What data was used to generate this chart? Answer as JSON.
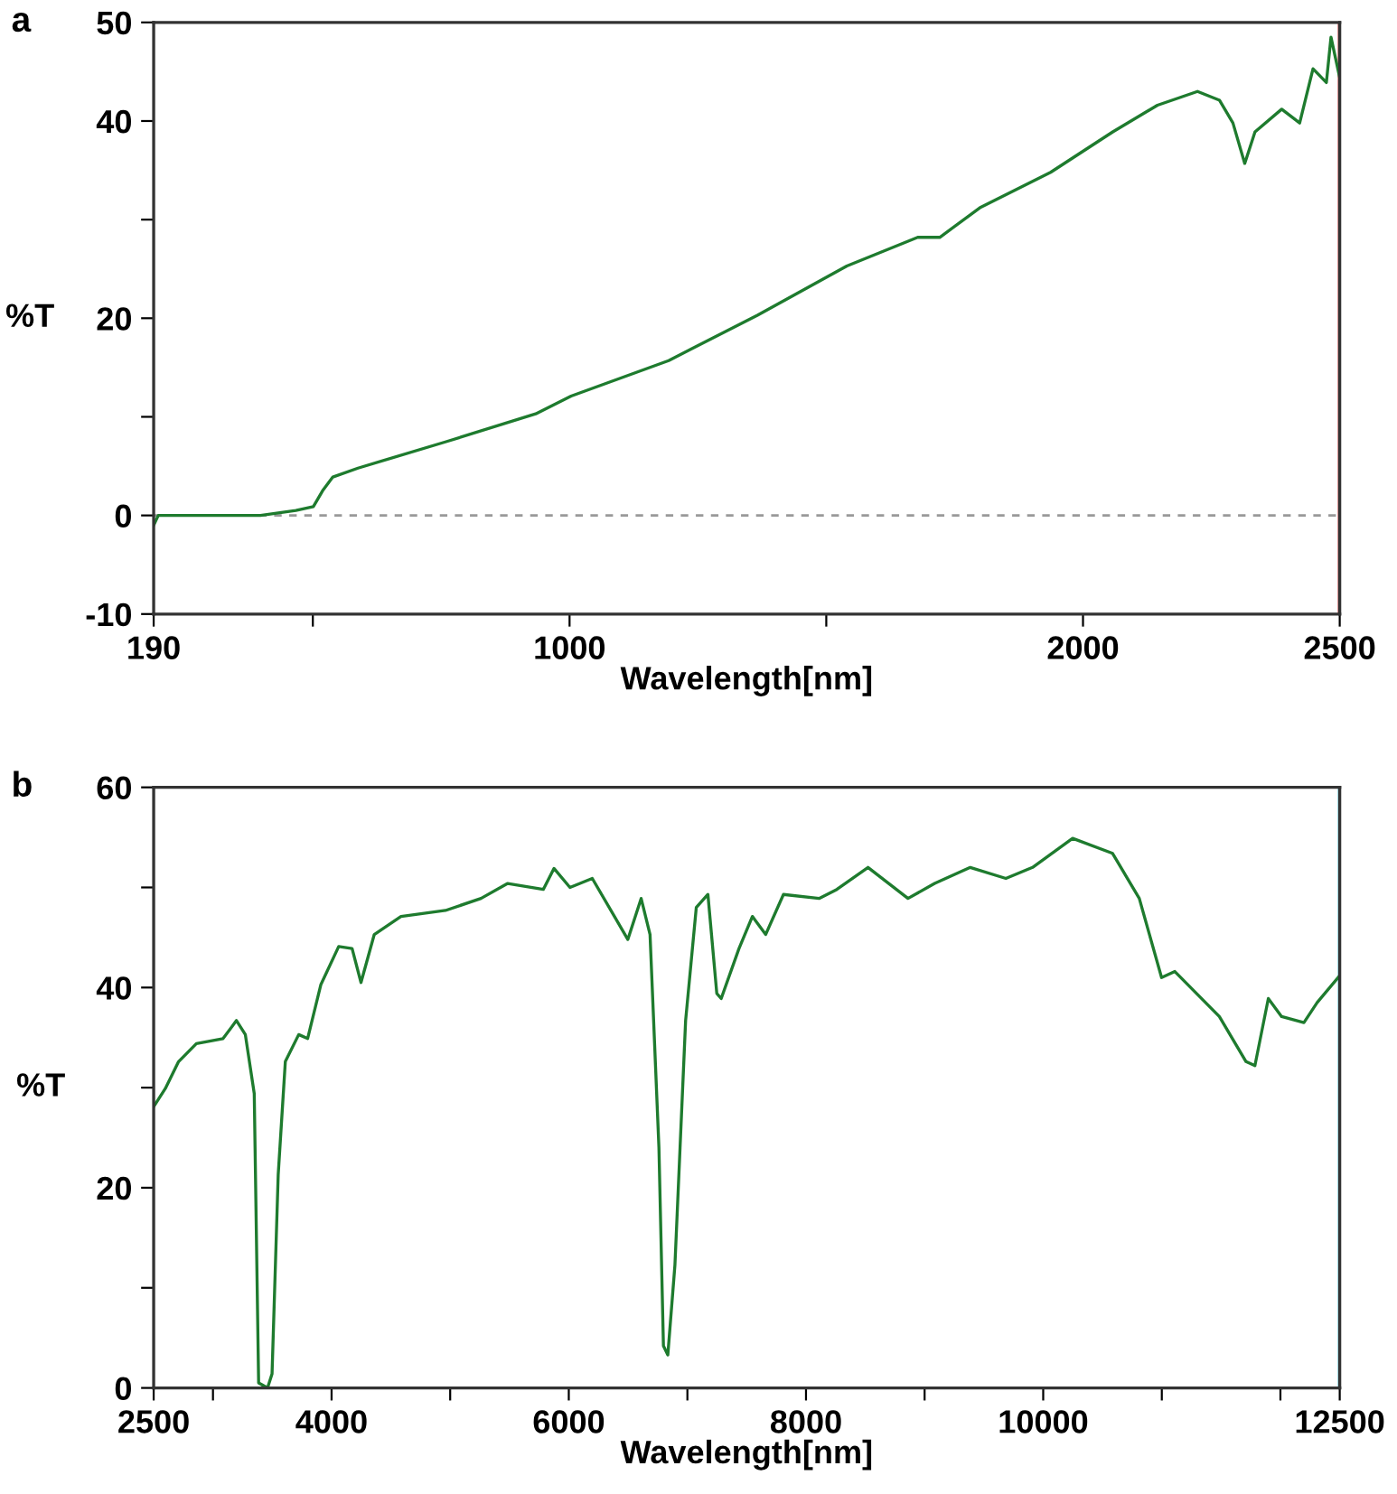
{
  "chart_data": [
    {
      "type": "line",
      "title": "a",
      "xlabel": "Wavelength[nm]",
      "ylabel": "%T",
      "xlim": [
        190,
        2500
      ],
      "xticks": [
        190,
        {
          "value": 500,
          "label": null
        },
        1000,
        {
          "value": 1500,
          "label": null
        },
        2000,
        2500
      ],
      "ylim": [
        -10,
        50
      ],
      "yticks": [
        -10,
        0,
        {
          "value": 10,
          "label": null
        },
        20,
        {
          "value": 30,
          "label": null
        },
        40,
        50
      ],
      "grid": false,
      "legend": false,
      "marker": "none",
      "line_style": "solid",
      "ref_lines": [
        {
          "axis": "y",
          "value": 0,
          "label": null,
          "color": "#999999",
          "line_style": "dashed"
        },
        {
          "axis": "x",
          "value": 2500,
          "label": null,
          "color": "#c0282a",
          "line_style": "solid"
        }
      ],
      "series": [
        {
          "color": "#1e7b2e",
          "x": [
            190,
            199,
            398,
            467,
            501,
            519,
            539,
            588,
            761,
            934,
            1003,
            1193,
            1366,
            1540,
            1678,
            1721,
            1799,
            1937,
            2058,
            2145,
            2223,
            2266,
            2292,
            2315,
            2335,
            2387,
            2422,
            2448,
            2474,
            2483,
            2500
          ],
          "values": [
            -1,
            0,
            0,
            0.5,
            0.9,
            2.5,
            3.9,
            4.8,
            7.5,
            10.3,
            12.1,
            15.7,
            20.3,
            25.3,
            28.2,
            28.2,
            31.2,
            34.8,
            38.9,
            41.6,
            43.0,
            42.1,
            39.8,
            35.7,
            38.9,
            41.2,
            39.8,
            45.3,
            43.9,
            48.5,
            44.4
          ]
        }
      ]
    },
    {
      "type": "line",
      "title": "b",
      "xlabel": "Wavelength[nm]",
      "ylabel": "%T",
      "xlim": [
        2500,
        12500
      ],
      "xticks": [
        2500,
        {
          "value": 3000,
          "label": null
        },
        4000,
        {
          "value": 5000,
          "label": null
        },
        6000,
        {
          "value": 7000,
          "label": null
        },
        8000,
        {
          "value": 9000,
          "label": null
        },
        10000,
        {
          "value": 11000,
          "label": null
        },
        {
          "value": 12000,
          "label": null
        },
        12500
      ],
      "ylim": [
        0,
        60
      ],
      "yticks": [
        0,
        {
          "value": 10,
          "label": null
        },
        20,
        {
          "value": 30,
          "label": null
        },
        40,
        {
          "value": 50,
          "label": null
        },
        60
      ],
      "grid": false,
      "legend": false,
      "marker": "none",
      "line_style": "solid",
      "ref_lines": [
        {
          "axis": "x",
          "value": 12500,
          "label": null,
          "color": "#4cc3d4",
          "line_style": "solid"
        }
      ],
      "series": [
        {
          "color": "#1e7b2e",
          "x": [
            2500,
            2598,
            2710,
            2860,
            3085,
            3198,
            3273,
            3348,
            3385,
            3460,
            3498,
            3550,
            3610,
            3723,
            3798,
            3910,
            4060,
            4173,
            4248,
            4360,
            4585,
            4960,
            5260,
            5485,
            5785,
            5875,
            6010,
            6198,
            6385,
            6498,
            6610,
            6685,
            6760,
            6798,
            6835,
            6895,
            6985,
            7075,
            7173,
            7248,
            7285,
            7435,
            7548,
            7660,
            7810,
            8110,
            8260,
            8523,
            8860,
            9085,
            9385,
            9685,
            9910,
            10248,
            10585,
            10810,
            10998,
            11110,
            11485,
            11710,
            11785,
            11898,
            12010,
            12198,
            12310,
            12500
          ],
          "values": [
            28.1,
            29.9,
            32.6,
            34.4,
            34.9,
            36.7,
            35.3,
            29.4,
            0.5,
            0,
            1.4,
            21.3,
            32.6,
            35.3,
            34.9,
            40.3,
            44.1,
            43.9,
            40.5,
            45.3,
            47.1,
            47.7,
            48.9,
            50.4,
            49.8,
            51.9,
            50.0,
            50.9,
            47.1,
            44.8,
            48.9,
            45.3,
            24.0,
            4.2,
            3.3,
            12.3,
            36.7,
            48.0,
            49.3,
            39.4,
            38.9,
            43.9,
            47.1,
            45.3,
            49.3,
            48.9,
            49.8,
            52.0,
            48.9,
            50.4,
            52.0,
            50.9,
            52.0,
            54.9,
            53.4,
            48.9,
            41.0,
            41.6,
            37.1,
            32.6,
            32.2,
            38.9,
            37.1,
            36.5,
            38.5,
            41.2
          ]
        }
      ]
    }
  ]
}
